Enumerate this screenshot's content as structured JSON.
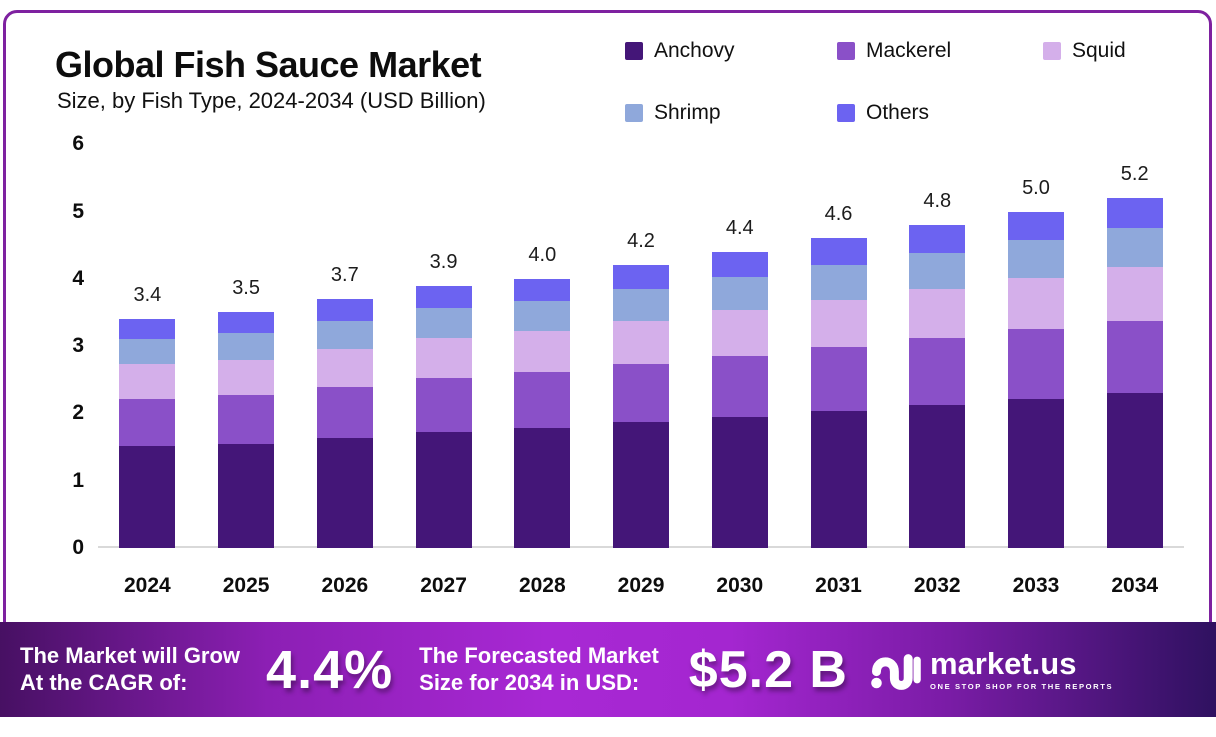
{
  "header": {
    "title": "Global Fish Sauce Market",
    "subtitle": "Size, by Fish Type, 2024-2034 (USD Billion)"
  },
  "chart_data": {
    "type": "bar",
    "stacked": true,
    "title": "Global Fish Sauce Market Size, by Fish Type, 2024-2034 (USD Billion)",
    "unit": "USD Billion",
    "grid": false,
    "legend_position": "top-right",
    "ylim": [
      0,
      6
    ],
    "y_ticks": [
      "0",
      "1",
      "2",
      "3",
      "4",
      "5",
      "6"
    ],
    "categories": [
      "2024",
      "2025",
      "2026",
      "2027",
      "2028",
      "2029",
      "2030",
      "2031",
      "2032",
      "2033",
      "2034"
    ],
    "totals": [
      3.4,
      3.5,
      3.7,
      3.9,
      4.0,
      4.2,
      4.4,
      4.6,
      4.8,
      5.0,
      5.2
    ],
    "total_labels": [
      "3.4",
      "3.5",
      "3.7",
      "3.9",
      "4.0",
      "4.2",
      "4.4",
      "4.6",
      "4.8",
      "5.0",
      "5.2"
    ],
    "series": [
      {
        "name": "Anchovy",
        "color": "#441678",
        "values": [
          1.51,
          1.55,
          1.64,
          1.73,
          1.78,
          1.87,
          1.95,
          2.04,
          2.13,
          2.22,
          2.31
        ]
      },
      {
        "name": "Mackerel",
        "color": "#8a50c8",
        "values": [
          0.7,
          0.72,
          0.76,
          0.8,
          0.83,
          0.87,
          0.91,
          0.95,
          0.99,
          1.03,
          1.07
        ]
      },
      {
        "name": "Squid",
        "color": "#d4afea",
        "values": [
          0.52,
          0.53,
          0.56,
          0.59,
          0.61,
          0.64,
          0.67,
          0.7,
          0.73,
          0.76,
          0.79
        ]
      },
      {
        "name": "Shrimp",
        "color": "#8fa8db",
        "values": [
          0.38,
          0.39,
          0.41,
          0.44,
          0.45,
          0.47,
          0.49,
          0.52,
          0.54,
          0.56,
          0.58
        ]
      },
      {
        "name": "Others",
        "color": "#6c63f1",
        "values": [
          0.29,
          0.31,
          0.33,
          0.34,
          0.33,
          0.35,
          0.38,
          0.39,
          0.41,
          0.43,
          0.45
        ]
      }
    ]
  },
  "footer": {
    "cagr_label_line1": "The Market will Grow",
    "cagr_label_line2": "At the CAGR of:",
    "cagr_value": "4.4%",
    "forecast_label_line1": "The Forecasted Market",
    "forecast_label_line2": "Size for 2034 in USD:",
    "forecast_value": "$5.2 B",
    "brand_name": "market.us",
    "brand_tagline": "ONE STOP SHOP FOR THE REPORTS"
  },
  "colors": {
    "frame_border": "#7e21a0",
    "axis_line": "#d9d9d9",
    "text": "#111111",
    "footer_gradient_left": "#471063",
    "footer_gradient_mid": "#a828d4",
    "footer_gradient_right": "#2f1160"
  }
}
